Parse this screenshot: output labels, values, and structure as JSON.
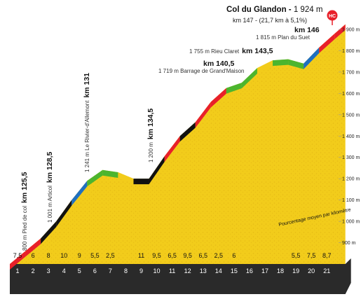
{
  "summit": {
    "title": "Col du Glandon",
    "sep": " - ",
    "alt": "1 924 m",
    "sub": "km 147 - (21,7 km à 5,1%)",
    "badge": "HC"
  },
  "annotations": {
    "km146": "km 146",
    "plan_du_suet": "1 815 m  Plan du Suet",
    "rieu_claret_elev": "1 755 m Rieu Claret",
    "km1435": "km 143,5",
    "km1405": "km 140,5",
    "grand_maison": "1 719 m  Barrage de Grand'Maison",
    "v1": "800 m  Pied de col",
    "v1k": "km 125,5",
    "v2": "1 001 m  Articol",
    "v2k": "km 128,5",
    "v3": "1 241 m Le Rivier-d'Allemont",
    "v3k": "km 131",
    "v4": "1 200 m",
    "v4k": "km 134,5",
    "pourcentage": "Pourcentage moyen par kilomètre"
  },
  "colors": {
    "yellow": "#f2cc1b",
    "red": "#e8202a",
    "black": "#111111",
    "blue": "#1f6fc0",
    "green": "#4cb52e",
    "base": "#2a2a2a",
    "summit_badge": "#e8202a"
  },
  "chart_data": {
    "type": "area",
    "x_label_unit": "km",
    "y_unit": "m",
    "ylim": [
      800,
      1900
    ],
    "y_ticks": [
      "900 m",
      "1 000 m",
      "1 100 m",
      "1 200 m",
      "1 300 m",
      "1 400 m",
      "1 500 m",
      "1 600 m",
      "1 700 m",
      "1 800 m",
      "1 900 m"
    ],
    "y_tick_values": [
      900,
      1000,
      1100,
      1200,
      1300,
      1400,
      1500,
      1600,
      1700,
      1800,
      1900
    ],
    "km_labels": [
      "1",
      "2",
      "3",
      "4",
      "5",
      "6",
      "7",
      "8",
      "9",
      "10",
      "11",
      "12",
      "13",
      "14",
      "15",
      "16",
      "17",
      "18",
      "19",
      "20",
      "21"
    ],
    "grad_labels": [
      "7,5",
      "6",
      "8",
      "10",
      "9",
      "5,5",
      "2,5",
      "",
      "11",
      "9,5",
      "6,5",
      "9,5",
      "6,5",
      "2,5",
      "6",
      "",
      "",
      "",
      "5,5",
      "7,5",
      "8,7"
    ],
    "profile_km": [
      0,
      1,
      2,
      3,
      4,
      5,
      6,
      7,
      8,
      9,
      10,
      11,
      12,
      13,
      14,
      15,
      16,
      17,
      18,
      19,
      20,
      21,
      21.7
    ],
    "profile_elev": [
      800,
      860,
      920,
      1000,
      1100,
      1190,
      1241,
      1230,
      1200,
      1200,
      1305,
      1400,
      1465,
      1560,
      1625,
      1650,
      1719,
      1755,
      1760,
      1740,
      1815,
      1880,
      1924
    ],
    "segment_colors": [
      "red",
      "red",
      "black",
      "black",
      "blue",
      "green",
      "green",
      "yellow",
      "black",
      "black",
      "red",
      "black",
      "red",
      "red",
      "green",
      "green",
      "yellow",
      "green",
      "green",
      "blue",
      "red",
      "red"
    ]
  }
}
